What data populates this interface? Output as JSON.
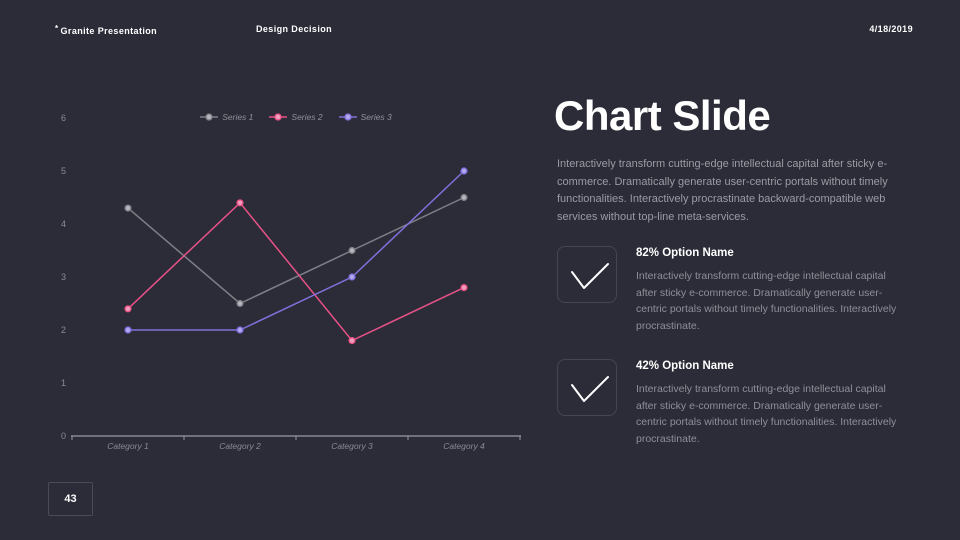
{
  "header": {
    "brand_mark": "*",
    "brand": "Granite Presentation",
    "section": "Design Decision",
    "date": "4/18/2019"
  },
  "chart_data": {
    "type": "line",
    "categories": [
      "Category 1",
      "Category 2",
      "Category 3",
      "Category 4"
    ],
    "series": [
      {
        "name": "Series 1",
        "color": "#7f7f88",
        "marker_fill": "#b6b6bd",
        "values": [
          4.3,
          2.5,
          3.5,
          4.5
        ]
      },
      {
        "name": "Series 2",
        "color": "#e85287",
        "marker_fill": "#f29ebc",
        "values": [
          2.4,
          4.4,
          1.8,
          2.8
        ]
      },
      {
        "name": "Series 3",
        "color": "#8170dc",
        "marker_fill": "#b3a6ee",
        "values": [
          2,
          2,
          3,
          5
        ]
      }
    ],
    "ylim": [
      0,
      6
    ],
    "yticks": [
      0,
      1,
      2,
      3,
      4,
      5,
      6
    ],
    "legend_position": "top",
    "grid": false,
    "axis_color": "#9a9aa2"
  },
  "main": {
    "title": "Chart Slide",
    "description": "Interactively transform cutting-edge intellectual capital after sticky e-commerce. Dramatically generate user-centric portals without timely functionalities. Interactively procrastinate backward-compatible web services without top-line meta-services.",
    "options": [
      {
        "heading": "82% Option Name",
        "body": "Interactively transform cutting-edge intellectual capital after sticky e-commerce. Dramatically generate user-centric portals without timely functionalities. Interactively procrastinate."
      },
      {
        "heading": "42% Option Name",
        "body": "Interactively transform cutting-edge intellectual capital after sticky e-commerce. Dramatically generate user-centric portals without timely functionalities. Interactively procrastinate."
      }
    ]
  },
  "footer": {
    "page_number": "43"
  },
  "colors": {
    "background": "#2b2c37",
    "text_primary": "#ffffff",
    "text_muted": "#9b9ba4",
    "border": "#45464f"
  }
}
